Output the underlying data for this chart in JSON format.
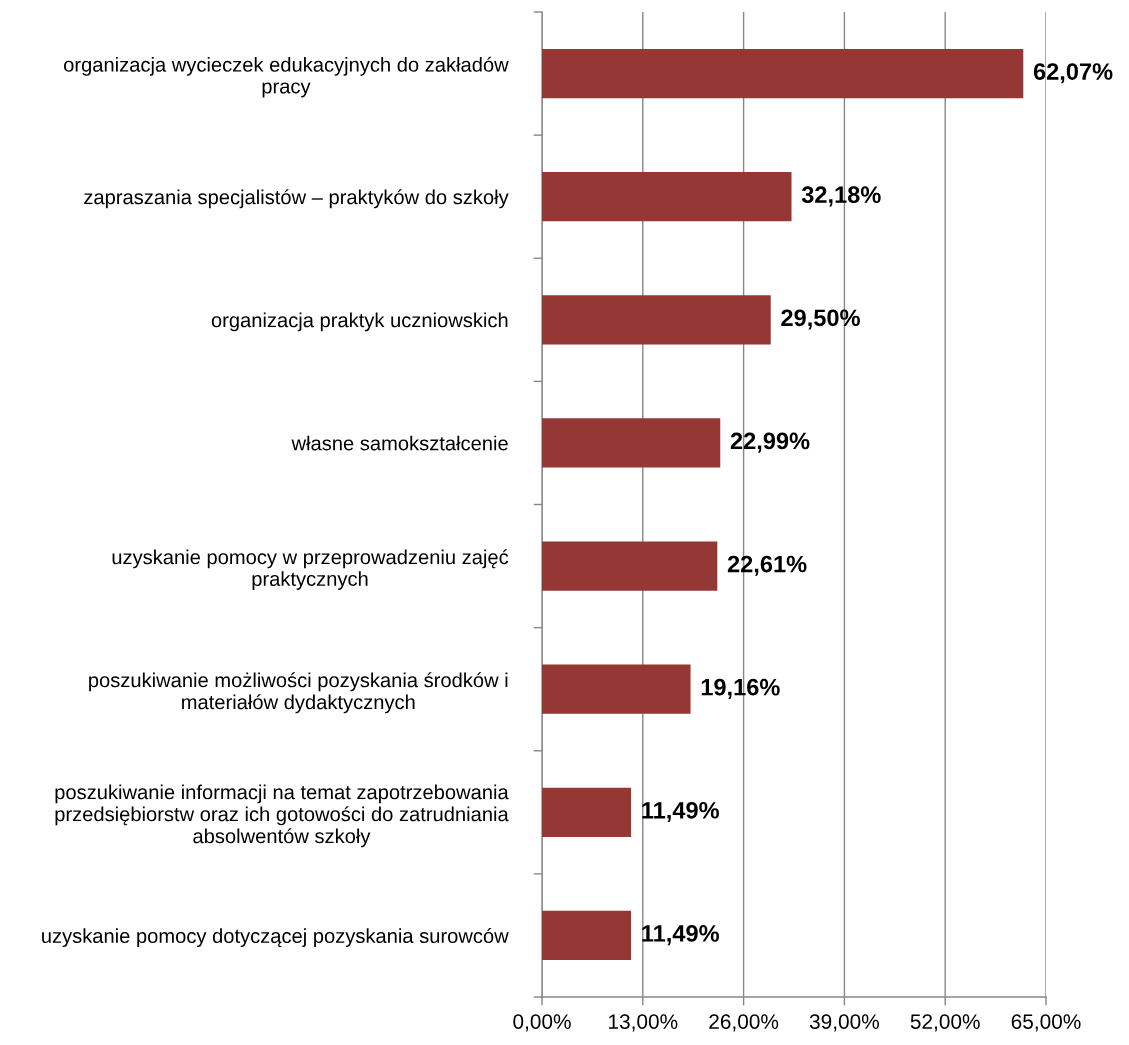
{
  "chart_data": {
    "type": "bar",
    "orientation": "horizontal",
    "categories": [
      "organizacja wycieczek edukacyjnych do zakładów\npracy",
      "zapraszania specjalistów – praktyków do szkoły",
      "organizacja praktyk uczniowskich",
      "własne samokształcenie",
      "uzyskanie pomocy w przeprowadzeniu zajęć\npraktycznych",
      "poszukiwanie możliwości pozyskania środków i\nmateriałów dydaktycznych",
      "poszukiwanie informacji na temat zapotrzebowania\nprzedsiębiorstw oraz ich gotowości do zatrudniania\nabsolwentów szkoły",
      "uzyskanie pomocy dotyczącej pozyskania surowców"
    ],
    "values": [
      62.07,
      32.18,
      29.5,
      22.99,
      22.61,
      19.16,
      11.49,
      11.49
    ],
    "value_labels": [
      "62,07%",
      "32,18%",
      "29,50%",
      "22,99%",
      "22,61%",
      "19,16%",
      "11,49%",
      "11,49%"
    ],
    "color": "#953735",
    "xlim": [
      0,
      65
    ],
    "xticks": [
      {
        "value": 0,
        "label": "0,00%"
      },
      {
        "value": 13,
        "label": "13,00%"
      },
      {
        "value": 26,
        "label": "26,00%"
      },
      {
        "value": 39,
        "label": "39,00%"
      },
      {
        "value": 52,
        "label": "52,00%"
      },
      {
        "value": 65,
        "label": "65,00%"
      }
    ],
    "grid": "x"
  }
}
